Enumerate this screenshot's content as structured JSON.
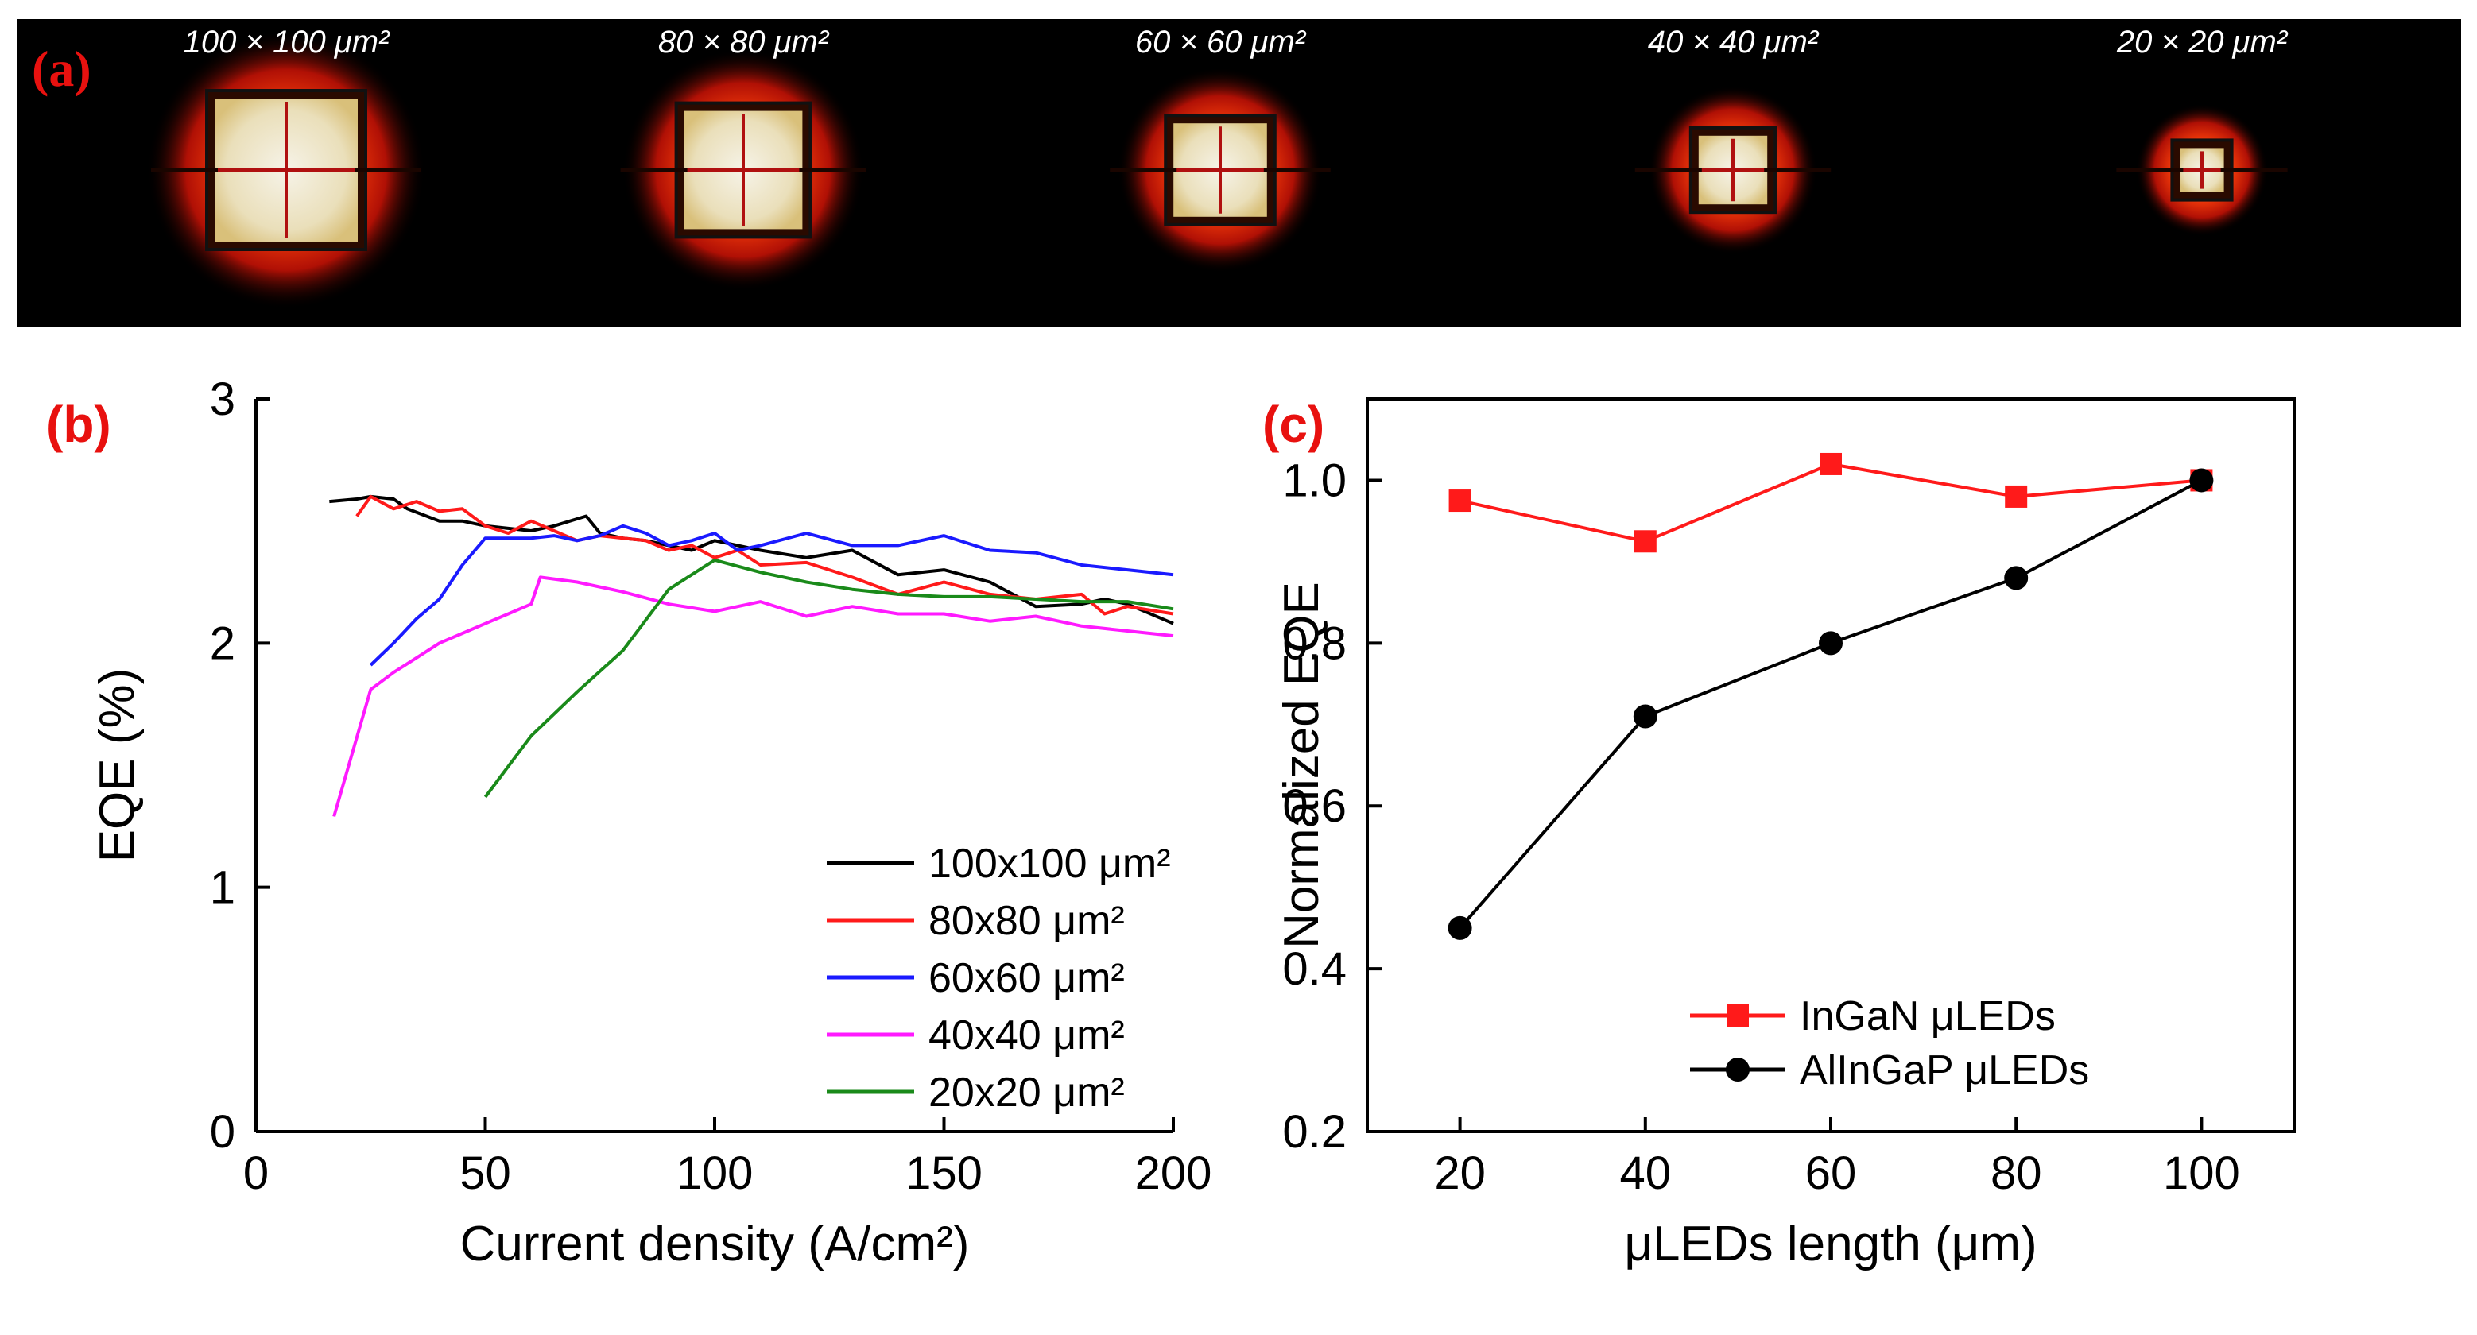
{
  "panel_a": {
    "label": "(a)",
    "devices": [
      {
        "caption": "100 × 100 μm²",
        "size_um": 100
      },
      {
        "caption": "80 × 80 μm²",
        "size_um": 80
      },
      {
        "caption": "60 × 60 μm²",
        "size_um": 60
      },
      {
        "caption": "40 × 40 μm²",
        "size_um": 40
      },
      {
        "caption": "20 × 20 μm²",
        "size_um": 20
      }
    ]
  },
  "colors": {
    "label_red": "#e8110f",
    "black": "#000000",
    "red": "#ff1a1a",
    "blue": "#1a1aff",
    "magenta": "#ff1aff",
    "green": "#1a8a1a"
  },
  "chart_data": [
    {
      "panel_label": "(b)",
      "type": "line",
      "xlabel": "Current density (A/cm²)",
      "ylabel": "EQE (%)",
      "xlim": [
        0,
        200
      ],
      "ylim": [
        0,
        3
      ],
      "xticks": [
        0,
        50,
        100,
        150,
        200
      ],
      "yticks": [
        0,
        1,
        2,
        3
      ],
      "legend_position": "bottom-right",
      "series": [
        {
          "name": "100x100 μm²",
          "color": "#000000",
          "x": [
            16,
            22,
            25,
            30,
            33,
            40,
            45,
            50,
            55,
            60,
            65,
            72,
            75,
            80,
            85,
            90,
            95,
            100,
            110,
            120,
            130,
            140,
            150,
            160,
            170,
            180,
            185,
            190,
            200
          ],
          "y": [
            2.58,
            2.59,
            2.6,
            2.59,
            2.55,
            2.5,
            2.5,
            2.48,
            2.47,
            2.46,
            2.48,
            2.52,
            2.45,
            2.43,
            2.42,
            2.4,
            2.38,
            2.42,
            2.38,
            2.35,
            2.38,
            2.28,
            2.3,
            2.25,
            2.15,
            2.16,
            2.18,
            2.16,
            2.08
          ]
        },
        {
          "name": "80x80 μm²",
          "color": "#ff1a1a",
          "x": [
            22,
            25,
            30,
            35,
            40,
            45,
            50,
            55,
            60,
            65,
            70,
            75,
            80,
            85,
            90,
            95,
            100,
            105,
            110,
            120,
            130,
            140,
            150,
            160,
            170,
            180,
            185,
            190,
            200
          ],
          "y": [
            2.52,
            2.6,
            2.55,
            2.58,
            2.54,
            2.55,
            2.48,
            2.45,
            2.5,
            2.46,
            2.42,
            2.44,
            2.43,
            2.42,
            2.38,
            2.4,
            2.35,
            2.38,
            2.32,
            2.33,
            2.27,
            2.2,
            2.25,
            2.2,
            2.18,
            2.2,
            2.12,
            2.15,
            2.12
          ]
        },
        {
          "name": "60x60 μm²",
          "color": "#1a1aff",
          "x": [
            25,
            30,
            35,
            40,
            45,
            50,
            55,
            60,
            65,
            70,
            75,
            80,
            85,
            90,
            95,
            100,
            105,
            110,
            120,
            130,
            140,
            150,
            160,
            170,
            180,
            190,
            200
          ],
          "y": [
            1.91,
            2.0,
            2.1,
            2.18,
            2.32,
            2.43,
            2.43,
            2.43,
            2.44,
            2.42,
            2.44,
            2.48,
            2.45,
            2.4,
            2.42,
            2.45,
            2.38,
            2.4,
            2.45,
            2.4,
            2.4,
            2.44,
            2.38,
            2.37,
            2.32,
            2.3,
            2.28
          ]
        },
        {
          "name": "40x40 μm²",
          "color": "#ff1aff",
          "x": [
            17,
            25,
            30,
            35,
            40,
            45,
            50,
            55,
            60,
            62,
            70,
            80,
            90,
            100,
            110,
            120,
            130,
            140,
            150,
            160,
            170,
            180,
            190,
            200
          ],
          "y": [
            1.29,
            1.81,
            1.88,
            1.94,
            2.0,
            2.04,
            2.08,
            2.12,
            2.16,
            2.27,
            2.25,
            2.21,
            2.16,
            2.13,
            2.17,
            2.11,
            2.15,
            2.12,
            2.12,
            2.09,
            2.11,
            2.07,
            2.05,
            2.03
          ]
        },
        {
          "name": "20x20 μm²",
          "color": "#1a8a1a",
          "x": [
            50,
            60,
            70,
            80,
            90,
            100,
            110,
            120,
            130,
            140,
            150,
            160,
            170,
            180,
            190,
            200
          ],
          "y": [
            1.37,
            1.62,
            1.8,
            1.97,
            2.22,
            2.34,
            2.29,
            2.25,
            2.22,
            2.2,
            2.19,
            2.19,
            2.18,
            2.17,
            2.17,
            2.14
          ]
        }
      ]
    },
    {
      "panel_label": "(c)",
      "type": "line",
      "xlabel": "μLEDs length (μm)",
      "ylabel": "Normalized EQE",
      "xlim": [
        10,
        110
      ],
      "ylim": [
        0.2,
        1.1
      ],
      "xticks": [
        20,
        40,
        60,
        80,
        100
      ],
      "yticks": [
        0.2,
        0.4,
        0.6,
        0.8,
        1.0
      ],
      "legend_position": "bottom-center",
      "series": [
        {
          "name": "InGaN μLEDs",
          "color": "#ff1a1a",
          "marker": "square",
          "x": [
            20,
            40,
            60,
            80,
            100
          ],
          "y": [
            0.975,
            0.925,
            1.02,
            0.98,
            1.0
          ]
        },
        {
          "name": "AlInGaP μLEDs",
          "color": "#000000",
          "marker": "circle",
          "x": [
            20,
            40,
            60,
            80,
            100
          ],
          "y": [
            0.45,
            0.71,
            0.8,
            0.88,
            1.0
          ]
        }
      ]
    }
  ]
}
